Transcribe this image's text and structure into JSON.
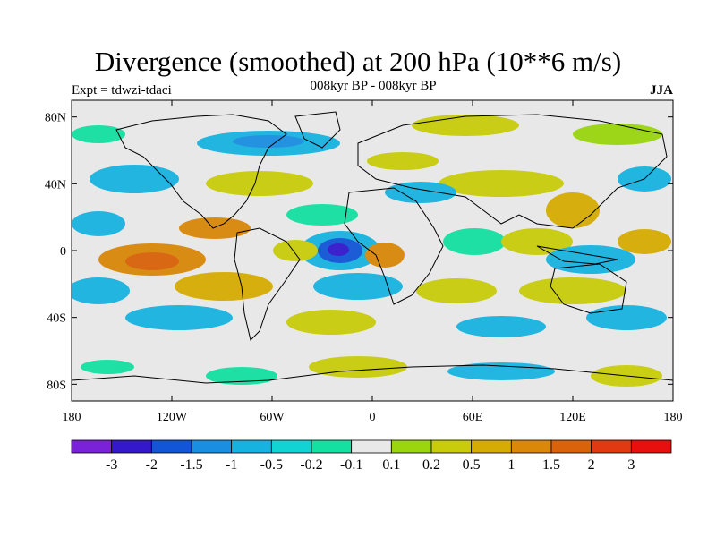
{
  "title": "Divergence (smoothed) at 200 hPa (10**6 m/s)",
  "subtitle": "008kyr BP - 008kyr BP",
  "experiment": "Expt = tdwzi-tdaci",
  "season": "JJA",
  "map": {
    "projection": "cylindrical-equidistant",
    "lon_range": [
      -180,
      180
    ],
    "lat_range": [
      -90,
      90
    ],
    "background_color": "#e8e8e8",
    "coastline_color": "#000000",
    "lat_ticks": [
      {
        "value": 80,
        "label": "80N"
      },
      {
        "value": 40,
        "label": "40N"
      },
      {
        "value": 0,
        "label": "0"
      },
      {
        "value": -40,
        "label": "40S"
      },
      {
        "value": -80,
        "label": "80S"
      }
    ],
    "lon_ticks": [
      {
        "value": -180,
        "label": "180"
      },
      {
        "value": -120,
        "label": "120W"
      },
      {
        "value": -60,
        "label": "60W"
      },
      {
        "value": 0,
        "label": "0"
      },
      {
        "value": 60,
        "label": "60E"
      },
      {
        "value": 120,
        "label": "120E"
      },
      {
        "value": 180,
        "label": "180"
      }
    ]
  },
  "colorbar": {
    "colors": [
      "#7a22d8",
      "#3318cc",
      "#1255d6",
      "#1a8ee0",
      "#17b3e0",
      "#11d3d3",
      "#14e0a2",
      "#e8e8e8",
      "#9ad50d",
      "#c8cc0a",
      "#d6ac04",
      "#d98808",
      "#d9620a",
      "#e13a12",
      "#e80f0f"
    ],
    "labels": [
      "-3",
      "-2",
      "-1.5",
      "-1",
      "-0.5",
      "-0.2",
      "-0.1",
      "0.1",
      "0.2",
      "0.5",
      "1",
      "1.5",
      "2",
      "3"
    ]
  }
}
